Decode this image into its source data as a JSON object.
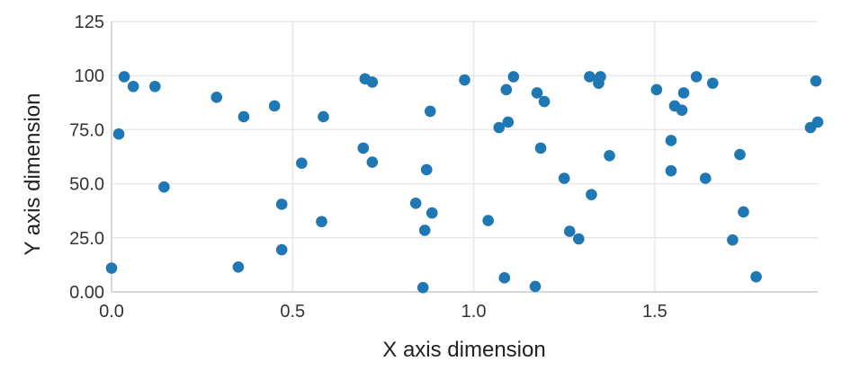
{
  "chart_data": {
    "type": "scatter",
    "title": "",
    "xlabel": "X axis dimension",
    "ylabel": "Y axis dimension",
    "xlim": [
      0,
      1.95
    ],
    "ylim": [
      0,
      125
    ],
    "x_ticks": [
      0,
      0.5,
      1.0,
      1.5
    ],
    "x_tick_labels": [
      "0.0",
      "0.5",
      "1.0",
      "1.5"
    ],
    "y_ticks": [
      0,
      25,
      50,
      75,
      100,
      125
    ],
    "y_tick_labels": [
      "0.00",
      "25.0",
      "50.0",
      "75.0",
      "100",
      "125"
    ],
    "grid": true,
    "marker_color": "#1f77b4",
    "series": [
      {
        "points": [
          [
            0.0,
            11
          ],
          [
            0.02,
            73
          ],
          [
            0.035,
            99.5
          ],
          [
            0.06,
            95
          ],
          [
            0.12,
            95
          ],
          [
            0.145,
            48.5
          ],
          [
            0.29,
            90
          ],
          [
            0.35,
            11.5
          ],
          [
            0.365,
            81
          ],
          [
            0.45,
            86
          ],
          [
            0.47,
            40.5
          ],
          [
            0.47,
            19.5
          ],
          [
            0.525,
            59.5
          ],
          [
            0.58,
            32.5
          ],
          [
            0.585,
            81
          ],
          [
            0.695,
            66.5
          ],
          [
            0.7,
            98.5
          ],
          [
            0.72,
            97
          ],
          [
            0.72,
            60
          ],
          [
            0.84,
            41
          ],
          [
            0.86,
            2
          ],
          [
            0.865,
            28.5
          ],
          [
            0.87,
            56.5
          ],
          [
            0.88,
            83.5
          ],
          [
            0.885,
            36.5
          ],
          [
            0.975,
            98
          ],
          [
            1.04,
            33
          ],
          [
            1.07,
            76
          ],
          [
            1.085,
            6.5
          ],
          [
            1.09,
            93.5
          ],
          [
            1.095,
            78.5
          ],
          [
            1.11,
            99.5
          ],
          [
            1.17,
            2.5
          ],
          [
            1.175,
            92
          ],
          [
            1.185,
            66.5
          ],
          [
            1.195,
            88
          ],
          [
            1.25,
            52.5
          ],
          [
            1.265,
            28
          ],
          [
            1.29,
            24.5
          ],
          [
            1.32,
            99.5
          ],
          [
            1.325,
            45
          ],
          [
            1.345,
            96.5
          ],
          [
            1.35,
            99.5
          ],
          [
            1.375,
            63
          ],
          [
            1.505,
            93.5
          ],
          [
            1.545,
            70
          ],
          [
            1.545,
            56
          ],
          [
            1.555,
            86
          ],
          [
            1.575,
            84
          ],
          [
            1.58,
            92
          ],
          [
            1.615,
            99.5
          ],
          [
            1.64,
            52.5
          ],
          [
            1.66,
            96.5
          ],
          [
            1.715,
            24
          ],
          [
            1.735,
            63.5
          ],
          [
            1.745,
            37
          ],
          [
            1.78,
            7
          ],
          [
            1.93,
            76
          ],
          [
            1.945,
            97.5
          ],
          [
            1.95,
            78.5
          ]
        ]
      }
    ]
  }
}
